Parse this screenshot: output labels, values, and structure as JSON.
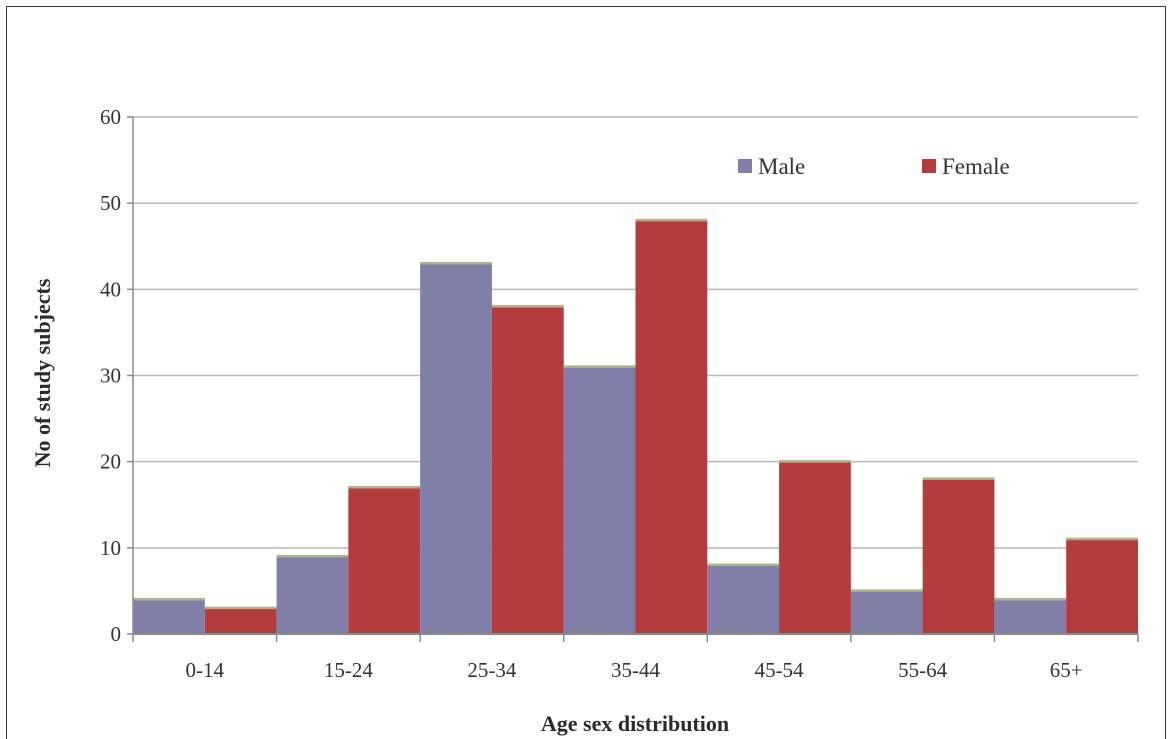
{
  "chart_data": {
    "type": "bar",
    "title": "",
    "xlabel": "Age sex distribution",
    "ylabel": "No of study subjects",
    "categories": [
      "0-14",
      "15-24",
      "25-34",
      "35-44",
      "45-54",
      "55-64",
      "65+"
    ],
    "series": [
      {
        "name": "Male",
        "color": "#7f7fa8",
        "values": [
          4,
          9,
          43,
          31,
          8,
          5,
          4
        ]
      },
      {
        "name": "Female",
        "color": "#b43c3c",
        "values": [
          3,
          17,
          38,
          48,
          20,
          18,
          11
        ]
      }
    ],
    "ylim": [
      0,
      60
    ],
    "yticks": [
      0,
      10,
      20,
      30,
      40,
      50,
      60
    ],
    "grid": true,
    "legend_position": "top-right"
  }
}
